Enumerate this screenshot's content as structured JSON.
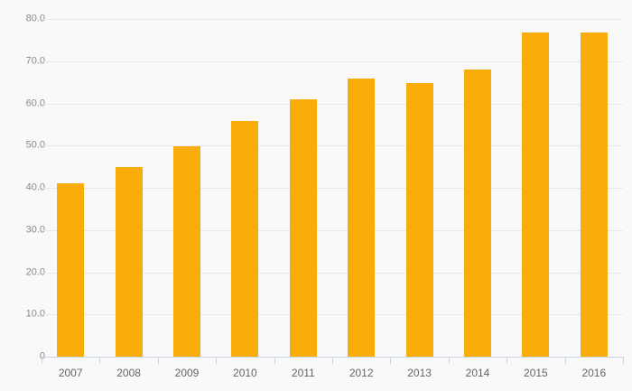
{
  "chart_data": {
    "type": "bar",
    "title": "",
    "xlabel": "",
    "ylabel": "",
    "categories": [
      "2007",
      "2008",
      "2009",
      "2010",
      "2011",
      "2012",
      "2013",
      "2014",
      "2015",
      "2016"
    ],
    "values": [
      41.0,
      44.9,
      49.9,
      55.9,
      61.0,
      65.9,
      64.8,
      68.0,
      76.8,
      76.8
    ],
    "ylim": [
      0,
      80
    ],
    "ytick_labels": [
      "0",
      "10.0",
      "20.0",
      "30.0",
      "40.0",
      "50.0",
      "60.0",
      "70.0",
      "80.0"
    ],
    "grid": true,
    "legend": false
  },
  "colors": {
    "bar": "#FAAD0A",
    "background": "#f9f9f9",
    "gridline": "#e8e8e8",
    "axis_line": "#c9d4e2",
    "y_label_text": "#8a8a8a",
    "x_label_text": "#666666"
  }
}
